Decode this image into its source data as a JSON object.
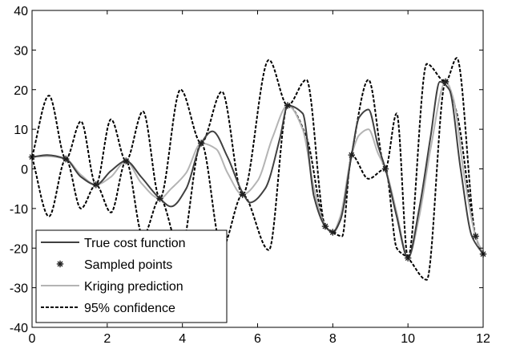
{
  "chart_data": {
    "type": "line",
    "title": "",
    "xlabel": "",
    "ylabel": "",
    "xlim": [
      0,
      12
    ],
    "ylim": [
      -40,
      40
    ],
    "x_ticks": [
      "0",
      "2",
      "4",
      "6",
      "8",
      "10",
      "12"
    ],
    "y_ticks": [
      "-40",
      "-30",
      "-20",
      "-10",
      "0",
      "10",
      "20",
      "30",
      "40"
    ],
    "x_tick_values": [
      0,
      2,
      4,
      6,
      8,
      10,
      12
    ],
    "y_tick_values": [
      -40,
      -30,
      -20,
      -10,
      0,
      10,
      20,
      30,
      40
    ],
    "grid": false,
    "legend_position": "bottom-left",
    "series": [
      {
        "name": "True cost function",
        "style": "solid",
        "color": "#404040",
        "x": [
          0,
          0.4,
          0.9,
          1.3,
          1.7,
          2.1,
          2.5,
          2.9,
          3.4,
          3.7,
          4.1,
          4.5,
          4.8,
          5.2,
          5.6,
          5.8,
          6.2,
          6.6,
          6.8,
          7.2,
          7.5,
          7.8,
          8.0,
          8.2,
          8.5,
          8.7,
          8.95,
          9.2,
          9.4,
          9.7,
          10.0,
          10.3,
          10.6,
          10.85,
          11.1,
          11.4,
          11.7,
          12.0
        ],
        "y": [
          3,
          3.5,
          2.5,
          -2,
          -4,
          -0.5,
          2,
          -2,
          -7.5,
          -9.5,
          -5,
          6.5,
          9.5,
          3,
          -6,
          -8.5,
          -5,
          8,
          16,
          14,
          -7,
          -14.5,
          -16,
          -13,
          3.5,
          13,
          15,
          6,
          0,
          -12,
          -22.5,
          -10,
          8,
          22,
          20,
          0,
          -17,
          -21.5
        ]
      },
      {
        "name": "Sampled points",
        "style": "markers",
        "color": "#202020",
        "x": [
          0,
          0.9,
          1.7,
          2.5,
          3.4,
          4.5,
          5.6,
          6.8,
          7.8,
          8.0,
          8.5,
          9.4,
          10.0,
          11.0,
          11.8,
          12.0
        ],
        "y": [
          3,
          2.5,
          -4,
          2,
          -7.5,
          6.5,
          -6.5,
          16,
          -14.5,
          -16,
          3.5,
          0,
          -22.5,
          22,
          -17,
          -21.5
        ]
      },
      {
        "name": "Kriging prediction",
        "style": "solid",
        "color": "#b4b4b4",
        "x": [
          0,
          0.4,
          0.9,
          1.3,
          1.7,
          2.1,
          2.5,
          2.9,
          3.4,
          3.7,
          4.1,
          4.5,
          4.9,
          5.2,
          5.6,
          6.0,
          6.4,
          6.8,
          7.2,
          7.5,
          7.8,
          8.0,
          8.2,
          8.5,
          8.7,
          8.95,
          9.2,
          9.4,
          9.7,
          10.0,
          10.3,
          10.6,
          11.0,
          11.2,
          11.5,
          11.8,
          12.0
        ],
        "y": [
          3,
          3.2,
          2.5,
          -1.5,
          -4,
          -2,
          2,
          -3.5,
          -7.5,
          -5,
          -1,
          6.5,
          5,
          -1,
          -6.5,
          -3,
          8,
          16,
          10,
          -5,
          -14.5,
          -16,
          -12,
          3.5,
          8.5,
          10,
          4,
          0,
          -11,
          -22.5,
          -12,
          5,
          22,
          18,
          -2,
          -17,
          -21.5
        ]
      },
      {
        "name": "95% confidence",
        "style": "dashed",
        "color": "#000000",
        "x": [
          0,
          0.45,
          0.9,
          1.3,
          1.7,
          2.1,
          2.5,
          2.95,
          3.4,
          3.95,
          4.5,
          5.05,
          5.6,
          6.3,
          6.8,
          7.3,
          7.8,
          8.0,
          8.25,
          8.5,
          8.95,
          9.4,
          9.7,
          10.0,
          10.5,
          11.0,
          11.3,
          11.8,
          12.0
        ],
        "y": [
          3,
          18.5,
          2.5,
          12,
          -4,
          12.5,
          2,
          14.5,
          -7.5,
          20,
          6.5,
          19.5,
          -6.5,
          27.5,
          16,
          22.5,
          -14.5,
          -16,
          -11,
          3.5,
          22.5,
          0,
          14,
          -22.5,
          26.5,
          22,
          28,
          -17,
          -21.5
        ],
        "y_lower": [
          3,
          -12,
          2.5,
          -10,
          -4,
          -11,
          2,
          -17,
          -7.5,
          -21,
          6.5,
          -20,
          -6.5,
          -20.5,
          16,
          8,
          -14.5,
          -16,
          -17,
          3.5,
          -2.5,
          0,
          -20,
          -22.5,
          -28,
          22,
          14,
          -17,
          -21.5
        ]
      }
    ]
  }
}
